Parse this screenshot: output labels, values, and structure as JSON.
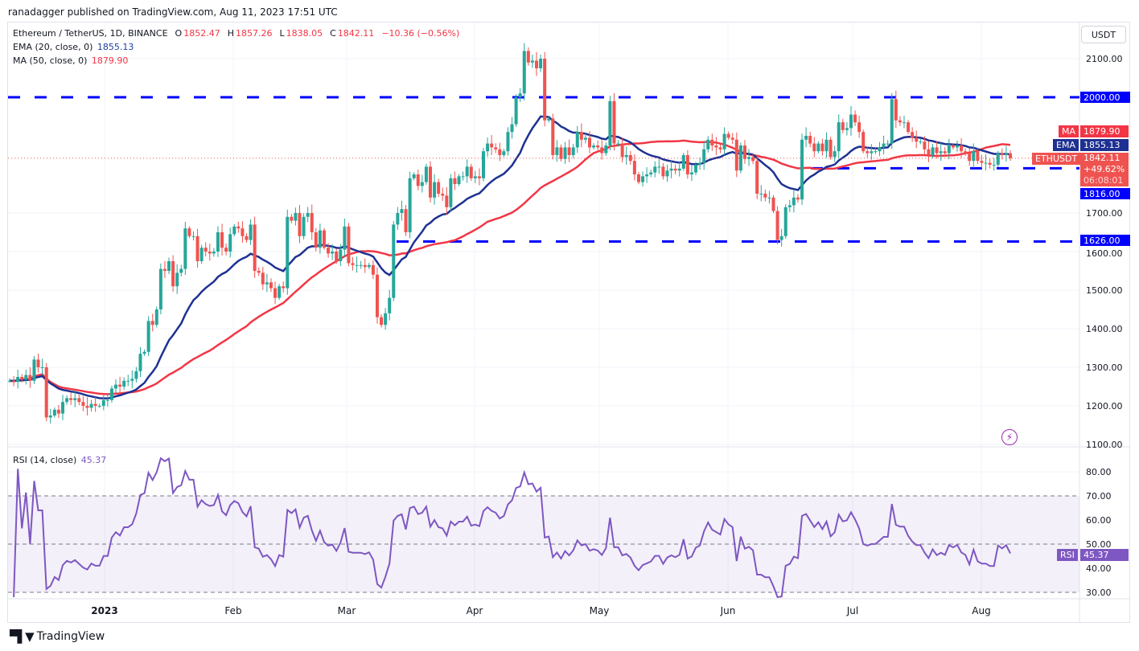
{
  "header": {
    "published": "ranadagger published on TradingView.com, Aug 11, 2023 17:51 UTC",
    "symbol": "Ethereum / TetherUS, 1D, BINANCE",
    "o_label": "O",
    "o": "1852.47",
    "h_label": "H",
    "h": "1857.26",
    "l_label": "L",
    "l": "1838.05",
    "c_label": "C",
    "c": "1842.11",
    "change": "−10.36 (−0.56%)",
    "ema_label": "EMA (20, close, 0)",
    "ema_value": "1855.13",
    "ma_label": "MA (50, close, 0)",
    "ma_value": "1879.90",
    "rsi_label": "RSI (14, close)",
    "rsi_value": "45.37"
  },
  "currency_button": "USDT",
  "axis_badges": {
    "ma_tag": "MA",
    "ma": "1879.90",
    "ema_tag": "EMA",
    "ema": "1855.13",
    "sym_tag": "ETHUSDT",
    "price": "1842.11",
    "pct": "+49.62%",
    "countdown": "06:08:01",
    "rsi_tag": "RSI",
    "rsi": "45.37"
  },
  "footer": {
    "brand": "TradingView"
  },
  "colors": {
    "up": "#26a69a",
    "down": "#ef5350",
    "ema": "#1e3192",
    "ma": "#f23645",
    "hline": "#0000ff",
    "rsi": "#7e57c2"
  },
  "chart_data": {
    "type": "candlestick",
    "symbol": "ETHUSDT",
    "interval": "1D",
    "start_date": "2022-12-09",
    "end_date": "2023-08-11",
    "close": [
      1265,
      1262,
      1275,
      1268,
      1280,
      1265,
      1320,
      1300,
      1300,
      1170,
      1175,
      1190,
      1180,
      1210,
      1220,
      1215,
      1220,
      1210,
      1200,
      1195,
      1205,
      1200,
      1200,
      1215,
      1215,
      1245,
      1255,
      1250,
      1265,
      1265,
      1270,
      1290,
      1335,
      1340,
      1420,
      1410,
      1450,
      1555,
      1550,
      1575,
      1510,
      1545,
      1555,
      1660,
      1640,
      1640,
      1575,
      1610,
      1600,
      1595,
      1600,
      1650,
      1610,
      1600,
      1645,
      1665,
      1660,
      1640,
      1630,
      1670,
      1550,
      1545,
      1515,
      1520,
      1505,
      1480,
      1510,
      1505,
      1690,
      1680,
      1700,
      1640,
      1690,
      1700,
      1650,
      1610,
      1655,
      1610,
      1595,
      1600,
      1575,
      1605,
      1665,
      1570,
      1565,
      1565,
      1565,
      1560,
      1565,
      1540,
      1430,
      1410,
      1440,
      1480,
      1670,
      1700,
      1710,
      1650,
      1790,
      1800,
      1770,
      1780,
      1820,
      1740,
      1780,
      1750,
      1745,
      1715,
      1790,
      1775,
      1795,
      1795,
      1820,
      1790,
      1795,
      1790,
      1860,
      1880,
      1870,
      1865,
      1850,
      1860,
      1910,
      1930,
      2000,
      2010,
      2120,
      2090,
      2095,
      2075,
      2100,
      1940,
      1945,
      1850,
      1870,
      1840,
      1870,
      1850,
      1870,
      1910,
      1890,
      1895,
      1870,
      1875,
      1870,
      1855,
      1875,
      1990,
      1880,
      1880,
      1845,
      1850,
      1835,
      1800,
      1780,
      1795,
      1800,
      1805,
      1820,
      1820,
      1795,
      1810,
      1815,
      1810,
      1815,
      1850,
      1800,
      1805,
      1825,
      1830,
      1865,
      1890,
      1875,
      1870,
      1865,
      1905,
      1895,
      1890,
      1810,
      1875,
      1840,
      1845,
      1835,
      1750,
      1750,
      1740,
      1740,
      1705,
      1630,
      1640,
      1715,
      1720,
      1740,
      1735,
      1890,
      1900,
      1880,
      1860,
      1880,
      1860,
      1890,
      1845,
      1860,
      1935,
      1915,
      1920,
      1955,
      1935,
      1910,
      1860,
      1855,
      1860,
      1860,
      1870,
      1880,
      1880,
      1995,
      1940,
      1935,
      1935,
      1910,
      1895,
      1885,
      1885,
      1865,
      1850,
      1870,
      1855,
      1860,
      1855,
      1875,
      1870,
      1875,
      1860,
      1855,
      1835,
      1860,
      1835,
      1830,
      1830,
      1825,
      1825,
      1855,
      1850,
      1855,
      1842
    ],
    "indicators": [
      {
        "name": "EMA",
        "period": 20
      },
      {
        "name": "MA",
        "period": 50
      }
    ],
    "horizontal_levels": [
      {
        "value": 2000,
        "label": "2000.00"
      },
      {
        "value": 1816,
        "label": "1816.00"
      },
      {
        "value": 1626,
        "label": "1626.00"
      }
    ],
    "price_axis": {
      "ticks": [
        "2100.00",
        "1700.00",
        "1600.00",
        "1500.00",
        "1400.00",
        "1300.00",
        "1200.00",
        "1100.00"
      ],
      "tick_values": [
        2100,
        1700,
        1600,
        1500,
        1400,
        1300,
        1200,
        1100
      ],
      "range": [
        1100,
        2100
      ]
    },
    "rsi_axis": {
      "ticks": [
        "80.00",
        "70.00",
        "60.00",
        "50.00",
        "40.00",
        "30.00"
      ],
      "tick_values": [
        80,
        70,
        60,
        50,
        40,
        30
      ],
      "overbought": 70,
      "oversold": 30
    },
    "time_axis": {
      "ticks": [
        "2023",
        "Feb",
        "Mar",
        "Apr",
        "May",
        "Jun",
        "Jul",
        "Aug"
      ]
    },
    "grid": true
  }
}
